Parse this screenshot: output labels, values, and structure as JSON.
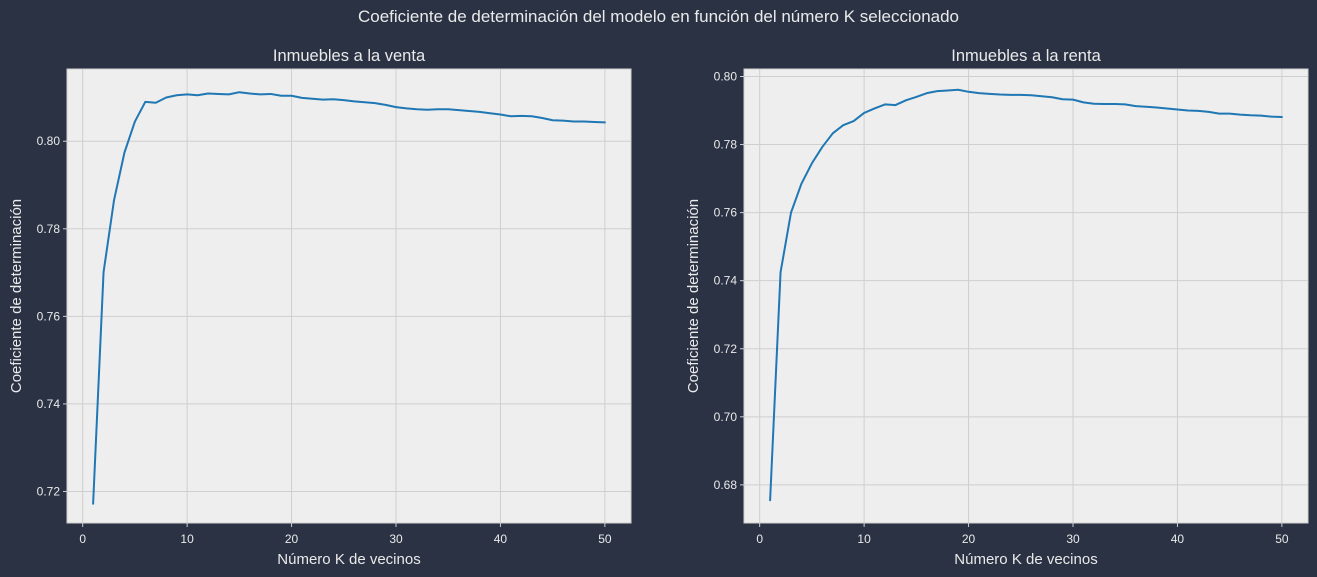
{
  "figure": {
    "suptitle": "Coeficiente de determinación del modelo en función del número K seleccionado"
  },
  "chart_data": [
    {
      "type": "line",
      "title": "Inmuebles a la venta",
      "xlabel": "Número K de vecinos",
      "ylabel": "Coeficiente de determinación",
      "xlim": [
        -1.5,
        52.5
      ],
      "ylim": [
        0.7128,
        0.8165
      ],
      "xticks": [
        0,
        10,
        20,
        30,
        40,
        50
      ],
      "xtick_labels": [
        "0",
        "10",
        "20",
        "30",
        "40",
        "50"
      ],
      "yticks": [
        0.72,
        0.74,
        0.76,
        0.78,
        0.8
      ],
      "ytick_labels": [
        "0.72",
        "0.74",
        "0.76",
        "0.78",
        "0.80"
      ],
      "grid": true,
      "line_color": "#1f77b4",
      "x": [
        1,
        2,
        3,
        4,
        5,
        6,
        7,
        8,
        9,
        10,
        11,
        12,
        13,
        14,
        15,
        16,
        17,
        18,
        19,
        20,
        21,
        22,
        23,
        24,
        25,
        26,
        27,
        28,
        29,
        30,
        31,
        32,
        33,
        34,
        35,
        36,
        37,
        38,
        39,
        40,
        41,
        42,
        43,
        44,
        45,
        46,
        47,
        48,
        49,
        50
      ],
      "values": [
        0.7172,
        0.7701,
        0.7865,
        0.7974,
        0.8045,
        0.809,
        0.8088,
        0.81,
        0.8105,
        0.8107,
        0.8105,
        0.8109,
        0.8108,
        0.8107,
        0.8112,
        0.8109,
        0.8107,
        0.8108,
        0.8104,
        0.8104,
        0.8099,
        0.8097,
        0.8095,
        0.8096,
        0.8094,
        0.8091,
        0.8089,
        0.8087,
        0.8083,
        0.8078,
        0.8075,
        0.8073,
        0.8072,
        0.8073,
        0.8073,
        0.8071,
        0.8069,
        0.8067,
        0.8064,
        0.8061,
        0.8057,
        0.8058,
        0.8057,
        0.8053,
        0.8048,
        0.8047,
        0.8045,
        0.8045,
        0.8044,
        0.8043
      ]
    },
    {
      "type": "line",
      "title": "Inmuebles a la renta",
      "xlabel": "Número K de vecinos",
      "ylabel": "Coeficiente de determinación",
      "xlim": [
        -1.5,
        52.5
      ],
      "ylim": [
        0.6688,
        0.8022
      ],
      "xticks": [
        0,
        10,
        20,
        30,
        40,
        50
      ],
      "xtick_labels": [
        "0",
        "10",
        "20",
        "30",
        "40",
        "50"
      ],
      "yticks": [
        0.68,
        0.7,
        0.72,
        0.74,
        0.76,
        0.78,
        0.8
      ],
      "ytick_labels": [
        "0.68",
        "0.70",
        "0.72",
        "0.74",
        "0.76",
        "0.78",
        "0.80"
      ],
      "grid": true,
      "line_color": "#1f77b4",
      "x": [
        1,
        2,
        3,
        4,
        5,
        6,
        7,
        8,
        9,
        10,
        11,
        12,
        13,
        14,
        15,
        16,
        17,
        18,
        19,
        20,
        21,
        22,
        23,
        24,
        25,
        26,
        27,
        28,
        29,
        30,
        31,
        32,
        33,
        34,
        35,
        36,
        37,
        38,
        39,
        40,
        41,
        42,
        43,
        44,
        45,
        46,
        47,
        48,
        49,
        50
      ],
      "values": [
        0.6755,
        0.7425,
        0.76,
        0.7685,
        0.7745,
        0.7793,
        0.7833,
        0.7857,
        0.7869,
        0.7893,
        0.7906,
        0.7918,
        0.7916,
        0.793,
        0.794,
        0.7951,
        0.7957,
        0.7959,
        0.7961,
        0.7955,
        0.7951,
        0.7949,
        0.7947,
        0.7946,
        0.7946,
        0.7945,
        0.7942,
        0.7939,
        0.7933,
        0.7932,
        0.7924,
        0.792,
        0.7919,
        0.7919,
        0.7918,
        0.7913,
        0.7911,
        0.7909,
        0.7906,
        0.7903,
        0.79,
        0.7899,
        0.7896,
        0.7891,
        0.7891,
        0.7888,
        0.7886,
        0.7885,
        0.7882,
        0.7881
      ]
    }
  ]
}
